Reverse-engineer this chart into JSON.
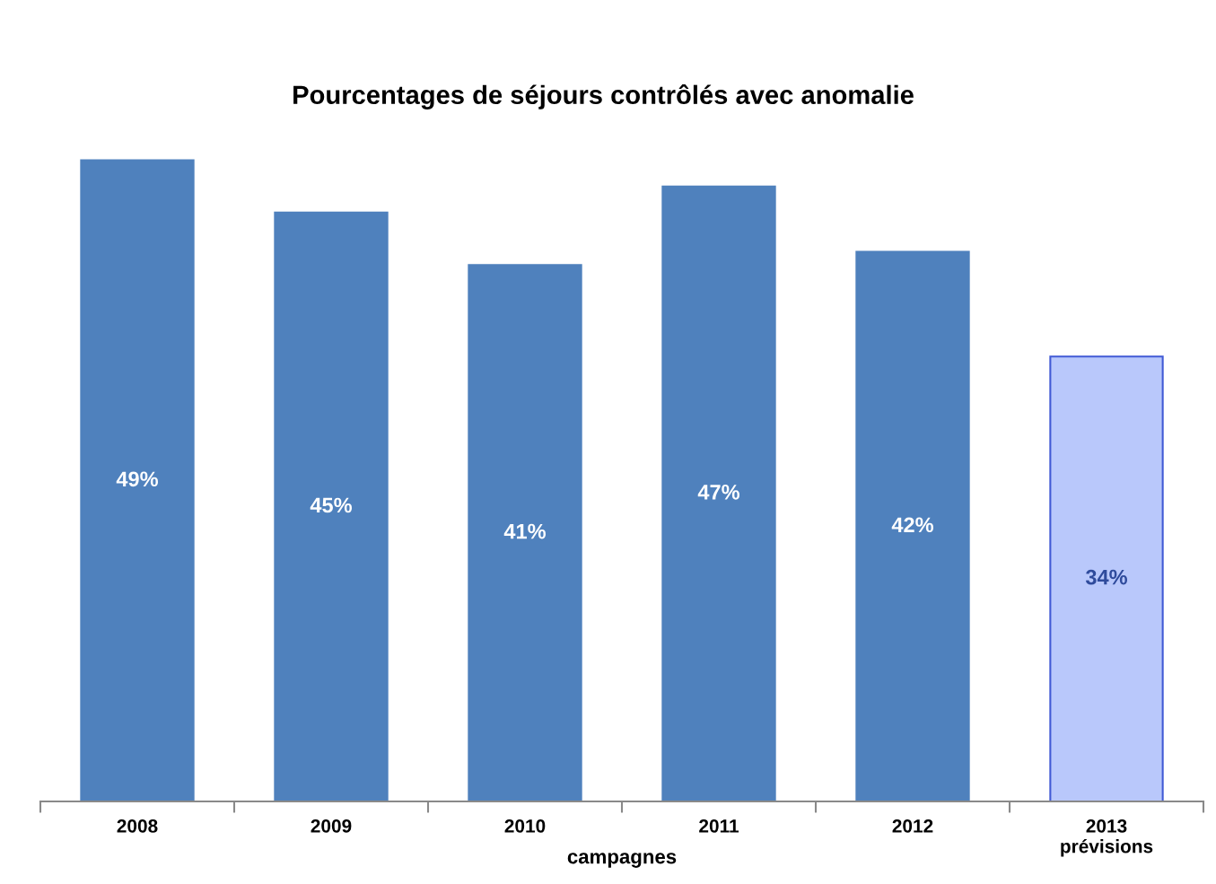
{
  "chart_data": {
    "type": "bar",
    "title": "Pourcentages de séjours contrôlés avec anomalie",
    "xlabel": "campagnes",
    "categories": [
      "2008",
      "2009",
      "2010",
      "2011",
      "2012",
      "2013\nprévisions"
    ],
    "values": [
      49,
      45,
      41,
      47,
      42,
      34
    ],
    "colors": [
      "#4f81bd",
      "#4f81bd",
      "#4f81bd",
      "#4f81bd",
      "#4f81bd",
      "#b9c8fb"
    ],
    "value_labels": [
      "49%",
      "45%",
      "41%",
      "47%",
      "42%",
      "34%"
    ]
  }
}
